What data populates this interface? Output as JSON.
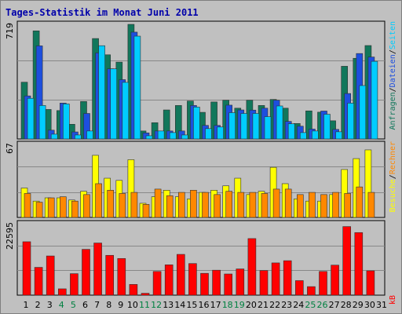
{
  "title": "Tages-Statistik im Monat Juni 2011",
  "colors": {
    "background": "#c0c0c0",
    "plot_border": "#7f7f7f",
    "title": "#0000aa",
    "hits": "#11775b",
    "files": "#1d4fde",
    "pages": "#00cdff",
    "visits": "#ffff00",
    "sites": "#ff8800",
    "kbytes": "#ff0000",
    "separator": "#000000",
    "weekend_label": "#008040",
    "weekday_label": "#000000"
  },
  "chart_data": [
    {
      "type": "bar",
      "panel": "top",
      "ymax_label": "719",
      "ylim": [
        0,
        719
      ],
      "x": [
        1,
        2,
        3,
        4,
        5,
        6,
        7,
        8,
        9,
        10,
        11,
        12,
        13,
        14,
        15,
        16,
        17,
        18,
        19,
        20,
        21,
        22,
        23,
        24,
        25,
        26,
        27,
        28,
        29,
        30,
        31
      ],
      "series": [
        {
          "name": "Anfragen",
          "values": [
            356,
            678,
            185,
            178,
            92,
            235,
            630,
            528,
            482,
            719,
            50,
            102,
            182,
            210,
            238,
            167,
            232,
            243,
            193,
            243,
            210,
            248,
            193,
            97,
            176,
            168,
            114,
            456,
            506,
            586,
            0
          ]
        },
        {
          "name": "Dateien",
          "values": [
            270,
            584,
            55,
            225,
            44,
            160,
            540,
            440,
            372,
            670,
            38,
            50,
            50,
            50,
            210,
            85,
            85,
            212,
            182,
            181,
            193,
            243,
            110,
            80,
            62,
            175,
            60,
            285,
            536,
            514,
            0
          ]
        },
        {
          "name": "Seiten",
          "values": [
            255,
            210,
            30,
            220,
            25,
            50,
            585,
            440,
            355,
            645,
            20,
            50,
            40,
            25,
            200,
            65,
            75,
            165,
            160,
            160,
            140,
            207,
            95,
            40,
            50,
            155,
            45,
            225,
            335,
            487,
            0
          ]
        }
      ]
    },
    {
      "type": "bar",
      "panel": "middle",
      "ymax_label": "67",
      "ylim": [
        0,
        67
      ],
      "x": [
        1,
        2,
        3,
        4,
        5,
        6,
        7,
        8,
        9,
        10,
        11,
        12,
        13,
        14,
        15,
        16,
        17,
        18,
        19,
        20,
        21,
        22,
        23,
        24,
        25,
        26,
        27,
        28,
        29,
        30,
        31
      ],
      "series": [
        {
          "name": "Besuche",
          "values": [
            27,
            15,
            18,
            18,
            16,
            24,
            57,
            36,
            34,
            53,
            13,
            19,
            25,
            19,
            17,
            23,
            25,
            29,
            36,
            21,
            24,
            46,
            31,
            17,
            15,
            15,
            21,
            44,
            54,
            62,
            0
          ]
        },
        {
          "name": "Rechner",
          "values": [
            22,
            14,
            18,
            19,
            15,
            21,
            31,
            25,
            22,
            23,
            12,
            26,
            20,
            23,
            25,
            23,
            21,
            24,
            23,
            23,
            22,
            26,
            26,
            21,
            23,
            21,
            23,
            22,
            28,
            23,
            0
          ]
        }
      ]
    },
    {
      "type": "bar",
      "panel": "bottom",
      "ymax_label": "22595",
      "ylim": [
        0,
        22595
      ],
      "x": [
        1,
        2,
        3,
        4,
        5,
        6,
        7,
        8,
        9,
        10,
        11,
        12,
        13,
        14,
        15,
        16,
        17,
        18,
        19,
        20,
        21,
        22,
        23,
        24,
        25,
        26,
        27,
        28,
        29,
        30,
        31
      ],
      "series": [
        {
          "name": "kB",
          "values": [
            16900,
            8800,
            12400,
            2000,
            6800,
            14500,
            16500,
            12600,
            11600,
            3400,
            600,
            7500,
            9600,
            12900,
            10000,
            6900,
            7900,
            6700,
            8300,
            17900,
            7800,
            10200,
            10900,
            4600,
            2700,
            7500,
            9500,
            21700,
            19800,
            7700,
            0
          ]
        }
      ]
    }
  ],
  "days": [
    "1",
    "2",
    "3",
    "4",
    "5",
    "6",
    "7",
    "8",
    "9",
    "10",
    "11",
    "12",
    "13",
    "14",
    "15",
    "16",
    "17",
    "18",
    "19",
    "20",
    "21",
    "22",
    "23",
    "24",
    "25",
    "26",
    "27",
    "28",
    "29",
    "30",
    "31"
  ],
  "weekend_days": [
    4,
    5,
    11,
    12,
    18,
    19,
    25,
    26
  ],
  "side_labels": {
    "top": [
      "Anfragen",
      "/",
      "Dateien",
      "/",
      "Seiten"
    ],
    "middle": [
      "Besuche",
      "/",
      "Rechner"
    ],
    "bottom": [
      "kB"
    ]
  }
}
